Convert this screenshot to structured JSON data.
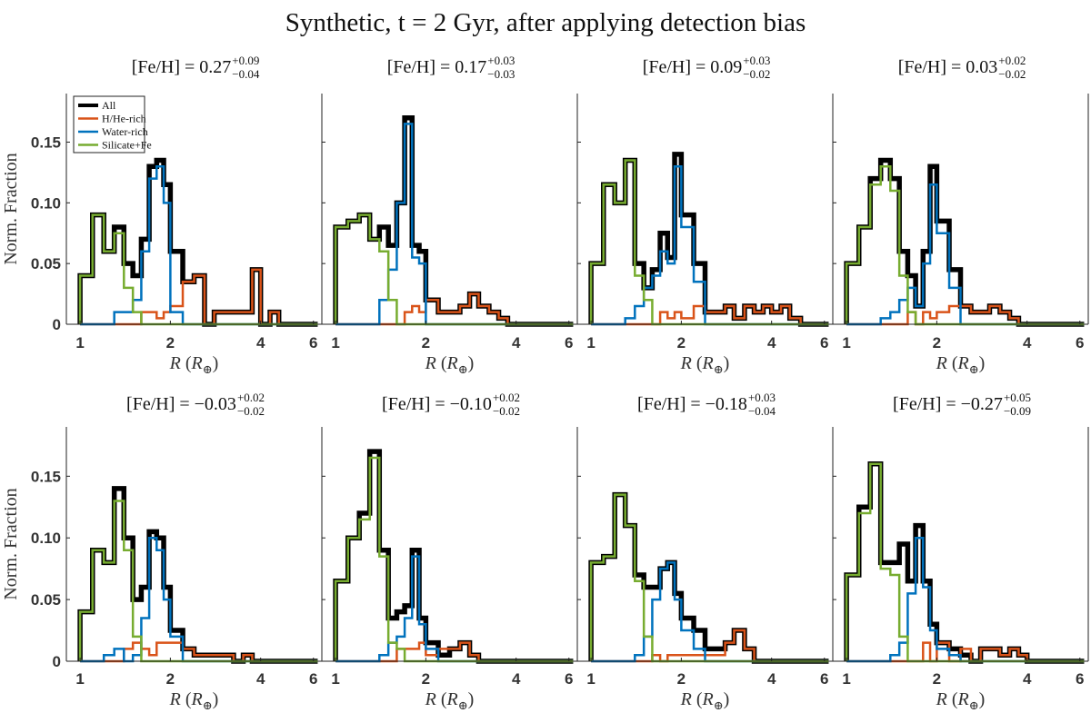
{
  "chart_data": {
    "title": "Synthetic, t = 2 Gyr, after applying detection bias",
    "type": "stairs",
    "xlabel": "R (R⊕)",
    "ylabel": "Norm. Fraction",
    "xscale": "log",
    "xlim": [
      0.9,
      6.4
    ],
    "ylim": [
      0,
      0.19
    ],
    "xticks": [
      1,
      2,
      4,
      6
    ],
    "yticks": [
      0,
      0.05,
      0.1,
      0.15
    ],
    "ytick_labels": [
      "0",
      "0.05",
      "0.10",
      "0.15"
    ],
    "bin_edges": [
      1.0,
      1.1,
      1.2,
      1.3,
      1.4,
      1.5,
      1.6,
      1.7,
      1.8,
      1.9,
      2.0,
      2.2,
      2.4,
      2.6,
      2.8,
      3.0,
      3.25,
      3.5,
      3.75,
      4.0,
      4.3,
      4.6,
      5.0,
      5.4,
      5.8,
      6.2
    ],
    "legend": [
      {
        "key": "all",
        "label": "All",
        "color": "#000000"
      },
      {
        "key": "hhe",
        "label": "H/He-rich",
        "color": "#D95319"
      },
      {
        "key": "water",
        "label": "Water-rich",
        "color": "#0072BD"
      },
      {
        "key": "silicate",
        "label": "Silicate+Fe",
        "color": "#77AC30"
      }
    ],
    "panels": [
      {
        "feh_value": "0.27",
        "feh_sup": "+0.09",
        "feh_sub": "−0.04",
        "all": [
          0.04,
          0.09,
          0.06,
          0.08,
          0.05,
          0.04,
          0.07,
          0.13,
          0.135,
          0.115,
          0.06,
          0.035,
          0.04,
          0,
          0.01,
          0.01,
          0.01,
          0.01,
          0.045,
          0,
          0.01,
          0,
          0,
          0,
          0
        ],
        "hhe": [
          0,
          0,
          0,
          0,
          0,
          0,
          0.01,
          0.01,
          0.005,
          0.01,
          0.015,
          0.035,
          0.04,
          0,
          0.01,
          0.01,
          0.01,
          0.01,
          0.045,
          0,
          0.01,
          0,
          0,
          0,
          0
        ],
        "water": [
          0,
          0,
          0,
          0.01,
          0.01,
          0.02,
          0.06,
          0.12,
          0.13,
          0.1,
          0.01,
          0,
          0,
          0,
          0,
          0,
          0,
          0,
          0,
          0,
          0,
          0,
          0,
          0,
          0
        ],
        "silicate": [
          0.04,
          0.09,
          0.06,
          0.075,
          0.03,
          0.01,
          0,
          0,
          0,
          0,
          0,
          0,
          0,
          0,
          0,
          0,
          0,
          0,
          0,
          0,
          0,
          0,
          0,
          0,
          0
        ]
      },
      {
        "feh_value": "0.17",
        "feh_sup": "+0.03",
        "feh_sub": "−0.03",
        "all": [
          0.08,
          0.085,
          0.09,
          0.07,
          0.08,
          0.065,
          0.1,
          0.17,
          0.065,
          0.06,
          0.02,
          0.01,
          0.01,
          0.015,
          0.025,
          0.015,
          0.01,
          0.005,
          0,
          0,
          0,
          0,
          0,
          0,
          0
        ],
        "hhe": [
          0,
          0,
          0,
          0,
          0,
          0,
          0,
          0.01,
          0.015,
          0.01,
          0.02,
          0.01,
          0.01,
          0.015,
          0.025,
          0.015,
          0.01,
          0.005,
          0,
          0,
          0,
          0,
          0,
          0,
          0
        ],
        "water": [
          0,
          0,
          0,
          0,
          0.02,
          0.045,
          0.1,
          0.165,
          0.055,
          0.05,
          0,
          0,
          0,
          0,
          0,
          0,
          0,
          0,
          0,
          0,
          0,
          0,
          0,
          0,
          0
        ],
        "silicate": [
          0.08,
          0.085,
          0.09,
          0.07,
          0.06,
          0.02,
          0,
          0,
          0,
          0,
          0,
          0,
          0,
          0,
          0,
          0,
          0,
          0,
          0,
          0,
          0,
          0,
          0,
          0,
          0
        ]
      },
      {
        "feh_value": "0.09",
        "feh_sup": "+0.03",
        "feh_sub": "−0.02",
        "all": [
          0.05,
          0.115,
          0.1,
          0.135,
          0.05,
          0.03,
          0.045,
          0.075,
          0.055,
          0.14,
          0.09,
          0.05,
          0.01,
          0.01,
          0.015,
          0.005,
          0.015,
          0.01,
          0.015,
          0.01,
          0.015,
          0.005,
          0,
          0,
          0
        ],
        "hhe": [
          0,
          0,
          0,
          0,
          0,
          0,
          0,
          0.01,
          0.005,
          0.01,
          0.005,
          0.015,
          0.01,
          0.01,
          0.015,
          0.005,
          0.015,
          0.01,
          0.015,
          0.01,
          0.015,
          0.005,
          0,
          0,
          0
        ],
        "water": [
          0,
          0,
          0,
          0.005,
          0.015,
          0.03,
          0.04,
          0.06,
          0.05,
          0.13,
          0.08,
          0.035,
          0,
          0,
          0,
          0,
          0,
          0,
          0,
          0,
          0,
          0,
          0,
          0,
          0
        ],
        "silicate": [
          0.05,
          0.115,
          0.1,
          0.135,
          0.04,
          0.02,
          0,
          0,
          0,
          0,
          0,
          0,
          0,
          0,
          0,
          0,
          0,
          0,
          0,
          0,
          0,
          0,
          0,
          0,
          0
        ]
      },
      {
        "feh_value": "0.03",
        "feh_sup": "+0.02",
        "feh_sub": "−0.02",
        "all": [
          0.05,
          0.08,
          0.12,
          0.135,
          0.12,
          0.06,
          0.04,
          0.015,
          0.06,
          0.13,
          0.085,
          0.045,
          0.015,
          0.01,
          0.01,
          0.015,
          0.01,
          0.005,
          0,
          0,
          0,
          0,
          0,
          0,
          0
        ],
        "hhe": [
          0,
          0,
          0,
          0,
          0,
          0,
          0.01,
          0,
          0.01,
          0.005,
          0.01,
          0.015,
          0.015,
          0.01,
          0.01,
          0.015,
          0.01,
          0.005,
          0,
          0,
          0,
          0,
          0,
          0,
          0
        ],
        "water": [
          0,
          0,
          0,
          0.005,
          0.01,
          0.02,
          0.03,
          0.015,
          0.05,
          0.115,
          0.075,
          0.03,
          0,
          0,
          0,
          0,
          0,
          0,
          0,
          0,
          0,
          0,
          0,
          0,
          0
        ],
        "silicate": [
          0.05,
          0.08,
          0.115,
          0.13,
          0.11,
          0.04,
          0.01,
          0,
          0,
          0,
          0,
          0,
          0,
          0,
          0,
          0,
          0,
          0,
          0,
          0,
          0,
          0,
          0,
          0,
          0
        ]
      },
      {
        "feh_value": "−0.03",
        "feh_sup": "+0.02",
        "feh_sub": "−0.02",
        "all": [
          0.04,
          0.09,
          0.08,
          0.14,
          0.1,
          0.05,
          0.06,
          0.105,
          0.1,
          0.06,
          0.025,
          0.01,
          0.005,
          0.005,
          0.005,
          0.005,
          0,
          0.005,
          0,
          0,
          0,
          0,
          0,
          0,
          0
        ],
        "hhe": [
          0,
          0,
          0,
          0,
          0.01,
          0.015,
          0.01,
          0.005,
          0.015,
          0.015,
          0.015,
          0.01,
          0.005,
          0.005,
          0.005,
          0.005,
          0,
          0.005,
          0,
          0,
          0,
          0,
          0,
          0,
          0
        ],
        "water": [
          0,
          0,
          0.005,
          0.01,
          0,
          0.005,
          0.035,
          0.1,
          0.09,
          0.05,
          0.02,
          0,
          0,
          0,
          0,
          0,
          0,
          0,
          0,
          0,
          0,
          0,
          0,
          0,
          0
        ],
        "silicate": [
          0.04,
          0.09,
          0.08,
          0.13,
          0.09,
          0.02,
          0,
          0,
          0,
          0,
          0,
          0,
          0,
          0,
          0,
          0,
          0,
          0,
          0,
          0,
          0,
          0,
          0,
          0,
          0
        ]
      },
      {
        "feh_value": "−0.10",
        "feh_sup": "+0.02",
        "feh_sub": "−0.02",
        "all": [
          0.065,
          0.1,
          0.12,
          0.17,
          0.09,
          0.035,
          0.04,
          0.045,
          0.09,
          0.035,
          0.015,
          0.005,
          0.01,
          0.015,
          0.005,
          0,
          0,
          0,
          0,
          0,
          0,
          0,
          0,
          0,
          0
        ],
        "hhe": [
          0,
          0,
          0,
          0,
          0,
          0,
          0.01,
          0.01,
          0.01,
          0.015,
          0.005,
          0.01,
          0.01,
          0.015,
          0.005,
          0,
          0,
          0,
          0,
          0,
          0,
          0,
          0,
          0,
          0
        ],
        "water": [
          0,
          0,
          0,
          0,
          0.005,
          0.015,
          0.02,
          0.035,
          0.085,
          0.03,
          0.01,
          0,
          0,
          0,
          0,
          0,
          0,
          0,
          0,
          0,
          0,
          0,
          0,
          0,
          0
        ],
        "silicate": [
          0.065,
          0.1,
          0.115,
          0.165,
          0.085,
          0.015,
          0.01,
          0,
          0,
          0,
          0,
          0,
          0,
          0,
          0,
          0,
          0,
          0,
          0,
          0,
          0,
          0,
          0,
          0,
          0
        ]
      },
      {
        "feh_value": "−0.18",
        "feh_sup": "+0.03",
        "feh_sub": "−0.04",
        "all": [
          0.08,
          0.085,
          0.135,
          0.11,
          0.07,
          0.06,
          0.06,
          0.075,
          0.08,
          0.055,
          0.035,
          0.025,
          0.01,
          0.01,
          0.015,
          0.025,
          0.01,
          0,
          0,
          0,
          0,
          0,
          0,
          0,
          0
        ],
        "hhe": [
          0,
          0,
          0,
          0,
          0,
          0,
          0.005,
          0,
          0.005,
          0.005,
          0.005,
          0.005,
          0.005,
          0.005,
          0.015,
          0.025,
          0.01,
          0,
          0,
          0,
          0,
          0,
          0,
          0,
          0
        ],
        "water": [
          0,
          0,
          0,
          0,
          0.005,
          0.02,
          0.05,
          0.075,
          0.08,
          0.05,
          0.025,
          0.01,
          0,
          0,
          0,
          0,
          0,
          0,
          0,
          0,
          0,
          0,
          0,
          0,
          0
        ],
        "silicate": [
          0.08,
          0.085,
          0.135,
          0.11,
          0.065,
          0.02,
          0,
          0,
          0,
          0,
          0,
          0,
          0,
          0,
          0,
          0,
          0,
          0,
          0,
          0,
          0,
          0,
          0,
          0,
          0
        ]
      },
      {
        "feh_value": "−0.27",
        "feh_sup": "+0.05",
        "feh_sub": "−0.09",
        "all": [
          0.07,
          0.125,
          0.16,
          0.08,
          0.08,
          0.095,
          0.065,
          0.11,
          0.065,
          0.03,
          0.015,
          0.01,
          0.005,
          0,
          0.01,
          0.01,
          0.005,
          0.01,
          0.005,
          0,
          0,
          0,
          0,
          0,
          0
        ],
        "hhe": [
          0,
          0,
          0,
          0,
          0,
          0,
          0,
          0,
          0.015,
          0,
          0.015,
          0,
          0.01,
          0,
          0.01,
          0.01,
          0.005,
          0.01,
          0.005,
          0,
          0,
          0,
          0,
          0,
          0
        ],
        "water": [
          0,
          0,
          0,
          0,
          0.005,
          0.015,
          0.055,
          0.1,
          0.06,
          0.025,
          0.01,
          0.005,
          0,
          0,
          0,
          0,
          0,
          0,
          0,
          0,
          0,
          0,
          0,
          0,
          0
        ],
        "silicate": [
          0.07,
          0.12,
          0.16,
          0.075,
          0.07,
          0.02,
          0,
          0,
          0,
          0,
          0,
          0,
          0,
          0,
          0,
          0,
          0,
          0,
          0,
          0,
          0,
          0,
          0,
          0,
          0
        ]
      }
    ]
  }
}
